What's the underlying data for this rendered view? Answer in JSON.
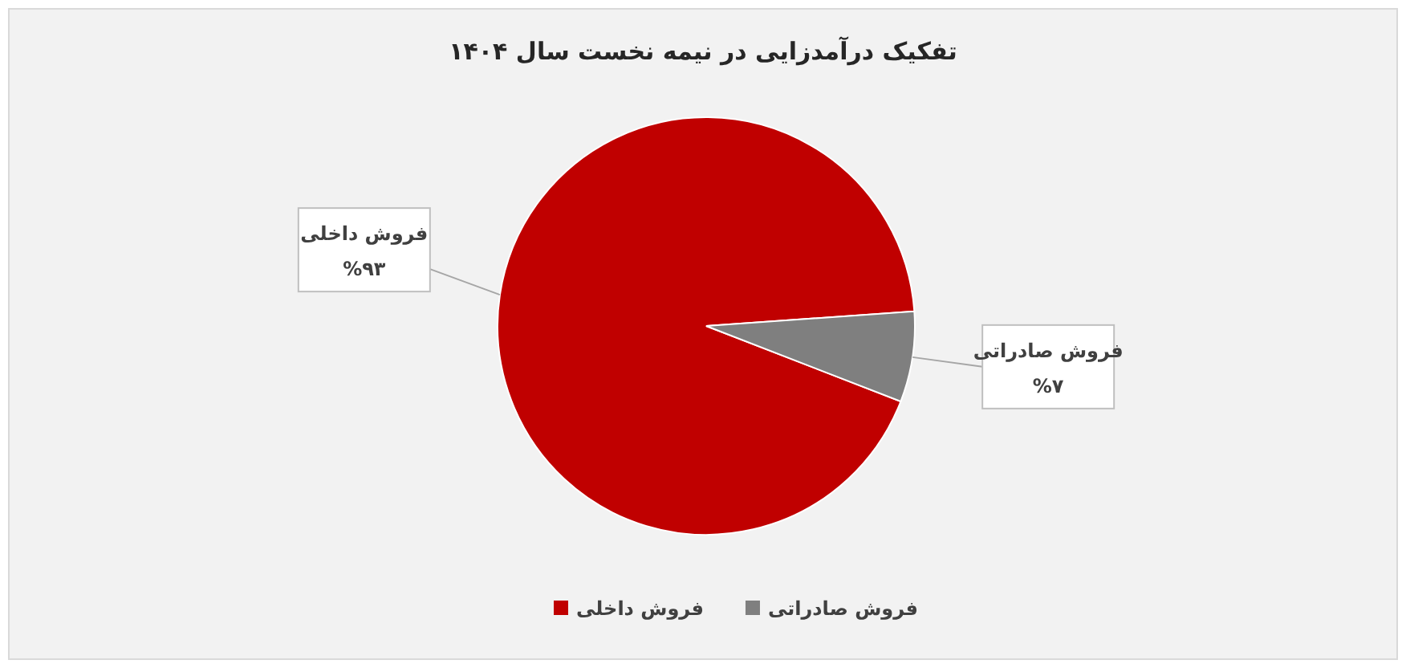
{
  "chart_data": {
    "type": "pie",
    "title": "تفکیک درآمدزایی در نیمه نخست سال ۱۴۰۴",
    "categories": [
      "فروش داخلی",
      "فروش صادراتی"
    ],
    "values": [
      93,
      7
    ],
    "colors": [
      "#c00000",
      "#7f7f7f"
    ],
    "value_labels": [
      "%۹۳",
      "%۷"
    ],
    "legend": "bottom"
  }
}
